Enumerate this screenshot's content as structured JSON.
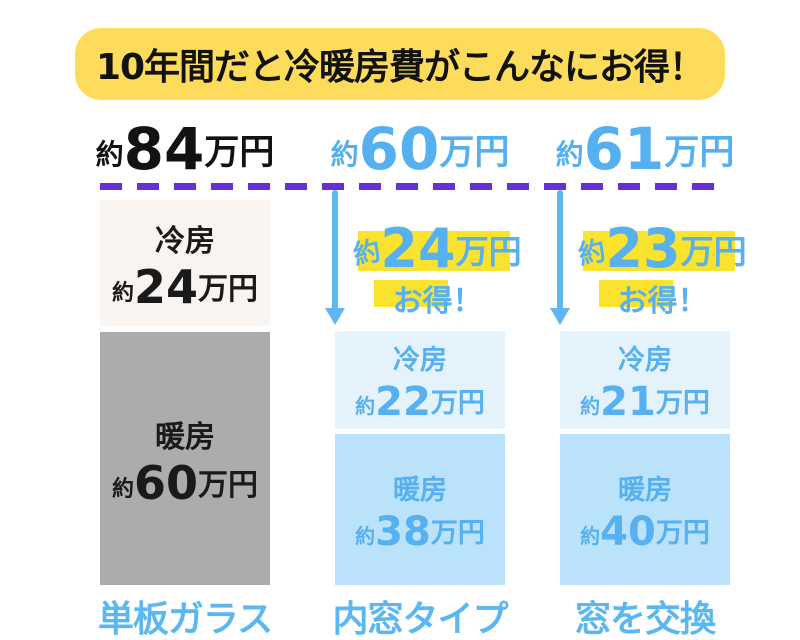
{
  "title": "10年間だと冷暖房費がこんなにお得！",
  "columns": [
    {
      "label": "単板ガラス",
      "total": {
        "approx": "約",
        "value": "84",
        "unit": "万円"
      },
      "bars": [
        {
          "name": "冷房",
          "approx": "約",
          "value": "24",
          "unit": "万円"
        },
        {
          "name": "暖房",
          "approx": "約",
          "value": "60",
          "unit": "万円"
        }
      ]
    },
    {
      "label": "内窓タイプ",
      "total": {
        "approx": "約",
        "value": "60",
        "unit": "万円"
      },
      "savings": {
        "approx": "約",
        "value": "24",
        "unit": "万円",
        "note": "お得！"
      },
      "bars": [
        {
          "name": "冷房",
          "approx": "約",
          "value": "22",
          "unit": "万円"
        },
        {
          "name": "暖房",
          "approx": "約",
          "value": "38",
          "unit": "万円"
        }
      ]
    },
    {
      "label": "窓を交換",
      "total": {
        "approx": "約",
        "value": "61",
        "unit": "万円"
      },
      "savings": {
        "approx": "約",
        "value": "23",
        "unit": "万円",
        "note": "お得！"
      },
      "bars": [
        {
          "name": "冷房",
          "approx": "約",
          "value": "21",
          "unit": "万円"
        },
        {
          "name": "暖房",
          "approx": "約",
          "value": "40",
          "unit": "万円"
        }
      ]
    }
  ],
  "colors": {
    "banner_yellow": "#FDDC5C",
    "highlight_yellow": "#F9E32F",
    "accent_blue": "#57B0EF",
    "label_blue": "#5BB7F2",
    "dashed_purple": "#6630D6",
    "bar_gray": "#ACACAC",
    "bar_light_pink": "#FAF4F1",
    "bar_light_blue": "#E4F2FC",
    "bar_mid_blue": "#BAE2FB",
    "text_black": "#1A1A1A"
  },
  "chart_data": {
    "type": "bar",
    "stacked": true,
    "title": "10年間だと冷暖房費がこんなにお得！",
    "categories": [
      "単板ガラス",
      "内窓タイプ",
      "窓を交換"
    ],
    "series": [
      {
        "name": "冷房",
        "values": [
          24,
          22,
          21
        ]
      },
      {
        "name": "暖房",
        "values": [
          60,
          38,
          40
        ]
      }
    ],
    "totals": [
      84,
      60,
      61
    ],
    "savings_vs_first": [
      0,
      24,
      23
    ],
    "unit": "万円",
    "ylabel": "",
    "xlabel": "",
    "legend_position": "none",
    "grid": false,
    "baseline_marker": "dashed line at 84万円 level"
  }
}
